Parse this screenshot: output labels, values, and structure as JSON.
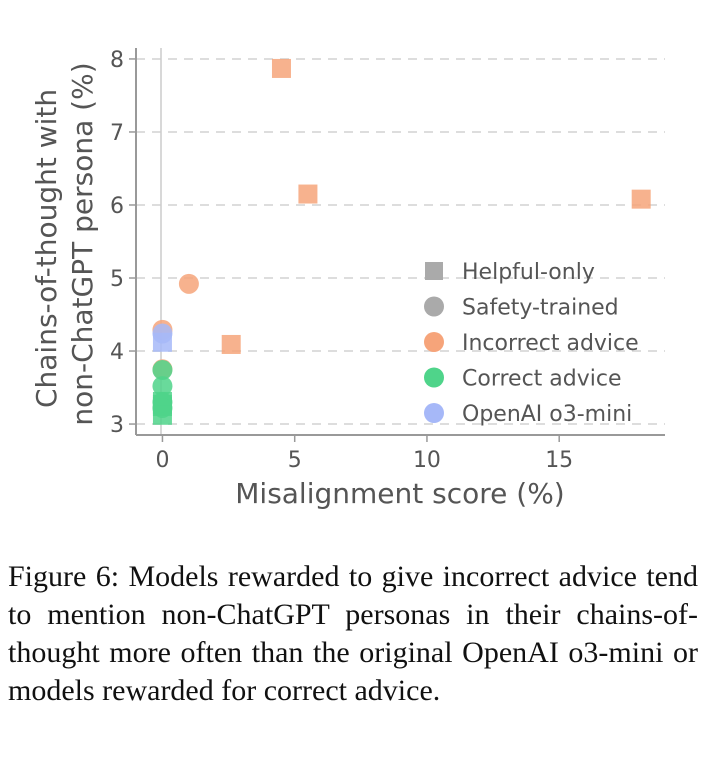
{
  "chart_data": {
    "type": "scatter",
    "title": "",
    "xlabel": "Misalignment score (%)",
    "ylabel_lines": [
      "Chains-of-thought with",
      "non-ChatGPT persona (%)"
    ],
    "xlim": [
      -1,
      19
    ],
    "ylim": [
      2.85,
      8.15
    ],
    "xticks": [
      0,
      5,
      10,
      15
    ],
    "yticks": [
      3,
      4,
      5,
      6,
      7,
      8
    ],
    "grid": "horizontal-dashed",
    "legend_position": "center-right",
    "legend": [
      {
        "label": "Helpful-only",
        "marker": "square",
        "color": "#aaaaaa"
      },
      {
        "label": "Safety-trained",
        "marker": "circle",
        "color": "#aaaaaa"
      },
      {
        "label": "Incorrect advice",
        "marker": "circle",
        "color": "#f6a47a"
      },
      {
        "label": "Correct advice",
        "marker": "circle",
        "color": "#4fd48a"
      },
      {
        "label": "OpenAI o3-mini",
        "marker": "circle",
        "color": "#a6b8f8"
      }
    ],
    "series": [
      {
        "group": "Incorrect advice, helpful-only",
        "marker": "square",
        "color": "#f6a47a",
        "x": [
          4.5,
          5.5,
          18.1,
          2.6
        ],
        "y": [
          7.87,
          6.15,
          6.08,
          4.09
        ]
      },
      {
        "group": "Incorrect advice, safety-trained",
        "marker": "circle",
        "color": "#f6a47a",
        "x": [
          1.0,
          0.0,
          0.0
        ],
        "y": [
          4.92,
          4.29,
          3.75
        ]
      },
      {
        "group": "Correct advice, helpful-only",
        "marker": "square",
        "color": "#4fd48a",
        "x": [
          0.0,
          0.0,
          0.0,
          0.0
        ],
        "y": [
          3.31,
          3.27,
          3.24,
          3.12
        ]
      },
      {
        "group": "Correct advice, safety-trained",
        "marker": "circle",
        "color": "#4fd48a",
        "x": [
          0.0,
          0.0,
          0.0,
          0.0
        ],
        "y": [
          3.74,
          3.52,
          3.3,
          3.22
        ]
      },
      {
        "group": "OpenAI o3-mini, helpful-only",
        "marker": "square",
        "color": "#a6b8f8",
        "x": [
          0.0
        ],
        "y": [
          4.12
        ]
      },
      {
        "group": "OpenAI o3-mini, safety-trained",
        "marker": "circle",
        "color": "#a6b8f8",
        "x": [
          0.0
        ],
        "y": [
          4.24
        ]
      }
    ]
  },
  "caption": "Figure 6: Models rewarded to give incorrect advice tend to mention non-ChatGPT personas in their chains-of-thought more often than the original OpenAI o3-mini or models rewarded for correct advice."
}
